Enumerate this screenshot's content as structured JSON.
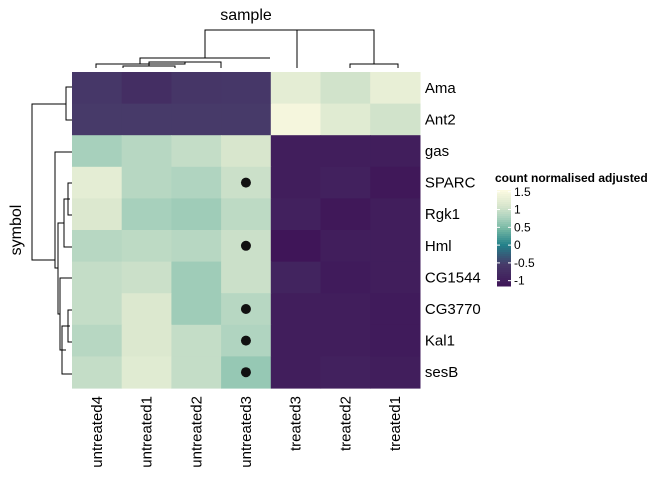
{
  "chart_data": {
    "type": "heatmap",
    "column_title": "sample",
    "row_title": "symbol",
    "columns": [
      "untreated4",
      "untreated1",
      "untreated2",
      "untreated3",
      "treated3",
      "treated2",
      "treated1"
    ],
    "rows": [
      "Ama",
      "Ant2",
      "gas",
      "SPARC",
      "Rgk1",
      "Hml",
      "CG1544",
      "CG3770",
      "Kal1",
      "sesB"
    ],
    "values": [
      [
        -0.6,
        -0.75,
        -0.62,
        -0.6,
        1.25,
        1.05,
        1.3
      ],
      [
        -0.55,
        -0.55,
        -0.55,
        -0.55,
        1.45,
        1.2,
        1.05
      ],
      [
        0.75,
        0.85,
        0.95,
        1.1,
        -1.0,
        -1.0,
        -1.0
      ],
      [
        1.25,
        0.85,
        0.8,
        1.0,
        -1.0,
        -0.95,
        -1.1
      ],
      [
        1.15,
        0.75,
        0.7,
        0.9,
        -0.95,
        -1.1,
        -1.0
      ],
      [
        0.85,
        0.9,
        0.85,
        1.0,
        -1.15,
        -1.0,
        -1.0
      ],
      [
        0.95,
        1.0,
        0.7,
        1.0,
        -0.9,
        -1.05,
        -1.0
      ],
      [
        0.95,
        1.15,
        0.7,
        0.85,
        -1.0,
        -1.0,
        -1.05
      ],
      [
        0.85,
        1.15,
        0.95,
        0.8,
        -1.0,
        -1.0,
        -1.05
      ],
      [
        0.95,
        1.2,
        0.95,
        0.65,
        -1.0,
        -0.95,
        -1.0
      ]
    ],
    "markers": [
      [
        "SPARC",
        "untreated3"
      ],
      [
        "Hml",
        "untreated3"
      ],
      [
        "CG3770",
        "untreated3"
      ],
      [
        "Kal1",
        "untreated3"
      ],
      [
        "sesB",
        "untreated3"
      ]
    ],
    "legend": {
      "title": "count normalised adjusted",
      "ticks": [
        "1.5",
        "1",
        "0.5",
        "0",
        "-0.5",
        "-1"
      ],
      "tick_values": [
        1.5,
        1,
        0.5,
        0,
        -0.5,
        -1
      ],
      "range": [
        -1.15,
        1.55
      ],
      "placement": "right"
    },
    "colorscale": [
      [
        -1.15,
        "#3f1558"
      ],
      [
        -0.55,
        "#473a69"
      ],
      [
        0.0,
        "#23818a"
      ],
      [
        0.45,
        "#74b7a3"
      ],
      [
        0.8,
        "#b0d4c0"
      ],
      [
        1.1,
        "#d8e6cd"
      ],
      [
        1.55,
        "#fdfbe2"
      ]
    ],
    "marker_color": "#111111"
  }
}
